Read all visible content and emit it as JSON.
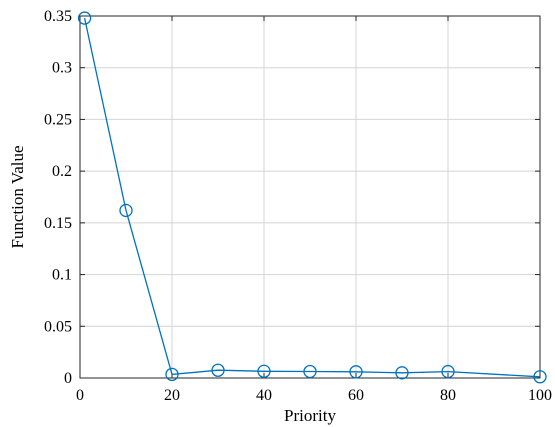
{
  "chart_data": {
    "type": "line",
    "title": "",
    "xlabel": "Priority",
    "ylabel": "Function Value",
    "xlim": [
      0,
      100
    ],
    "ylim": [
      0,
      0.35
    ],
    "xticks": [
      0,
      20,
      40,
      60,
      80,
      100
    ],
    "xtick_labels": [
      "0",
      "20",
      "40",
      "60",
      "80",
      "100"
    ],
    "yticks": [
      0,
      0.05,
      0.1,
      0.15,
      0.2,
      0.25,
      0.3,
      0.35
    ],
    "ytick_labels": [
      "0",
      "0.05",
      "0.1",
      "0.15",
      "0.2",
      "0.25",
      "0.3",
      "0.35"
    ],
    "grid": true,
    "series": [
      {
        "marker": "circle",
        "color": "#0072BD",
        "x": [
          1,
          10,
          20,
          30,
          40,
          50,
          60,
          70,
          80,
          100
        ],
        "y": [
          0.348,
          0.162,
          0.0035,
          0.0075,
          0.0065,
          0.0063,
          0.006,
          0.005,
          0.0062,
          0.0012
        ]
      }
    ]
  }
}
